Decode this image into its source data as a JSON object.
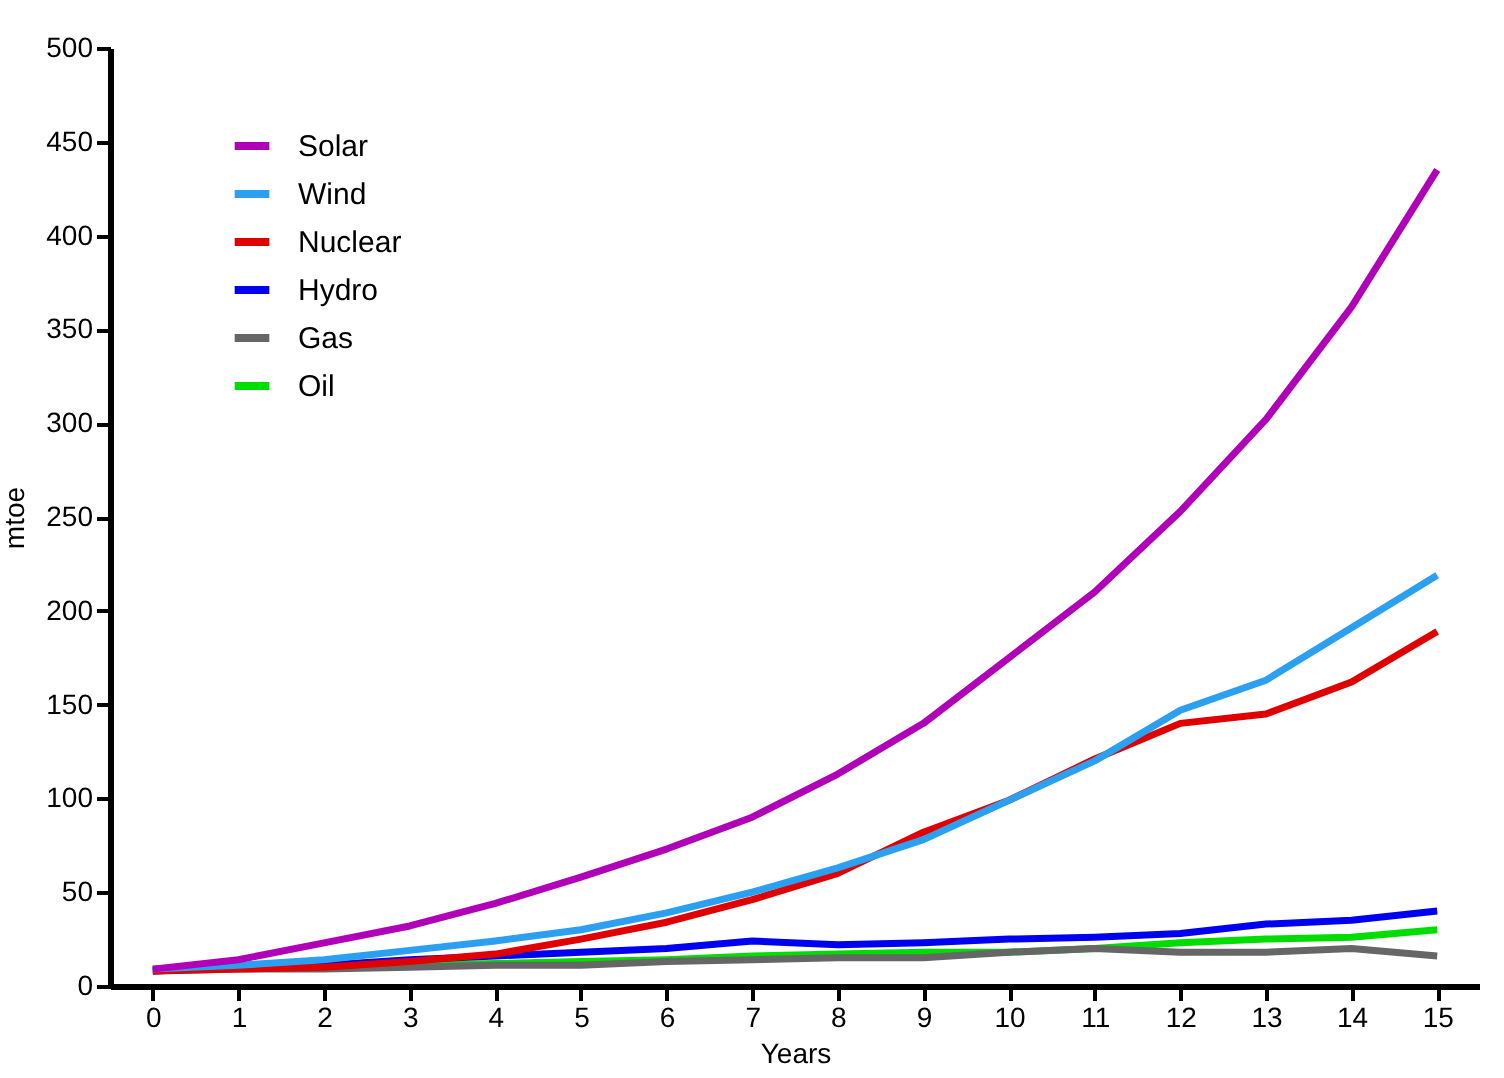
{
  "chart_data": {
    "type": "line",
    "xlabel": "Years",
    "ylabel": "mtoe",
    "x": [
      0,
      1,
      2,
      3,
      4,
      5,
      6,
      7,
      8,
      9,
      10,
      11,
      12,
      13,
      14,
      15
    ],
    "xlim": [
      -0.5,
      15.5
    ],
    "xticks": [
      0,
      1,
      2,
      3,
      4,
      5,
      6,
      7,
      8,
      9,
      10,
      11,
      12,
      13,
      14,
      15
    ],
    "ylim": [
      0,
      500
    ],
    "yticks": [
      0,
      50,
      100,
      150,
      200,
      250,
      300,
      350,
      400,
      450,
      500
    ],
    "grid": false,
    "legend": "top left",
    "marker": "none",
    "line_style": "solid",
    "series": [
      {
        "name": "Solar",
        "color": "#b000b8",
        "values": [
          9,
          14,
          23,
          32,
          44,
          58,
          73,
          90,
          113,
          140,
          175,
          210,
          253,
          302,
          362,
          435
        ]
      },
      {
        "name": "Wind",
        "color": "#2b9ff0",
        "values": [
          9,
          11,
          14,
          19,
          24,
          30,
          39,
          50,
          63,
          78,
          99,
          120,
          147,
          163,
          191,
          219
        ]
      },
      {
        "name": "Nuclear",
        "color": "#e00000",
        "values": [
          8,
          9,
          10,
          13,
          17,
          25,
          34,
          46,
          60,
          82,
          99,
          121,
          140,
          145,
          162,
          189
        ]
      },
      {
        "name": "Hydro",
        "color": "#0000f0",
        "values": [
          8,
          10,
          11,
          14,
          16,
          18,
          20,
          24,
          22,
          23,
          25,
          26,
          28,
          33,
          35,
          40
        ]
      },
      {
        "name": "Gas",
        "color": "#666666",
        "values": [
          8,
          9,
          9,
          10,
          11,
          11,
          13,
          14,
          15,
          15,
          18,
          20,
          18,
          18,
          20,
          16
        ]
      },
      {
        "name": "Oil",
        "color": "#00dd00",
        "values": [
          null,
          null,
          10,
          11,
          12,
          13,
          14,
          16,
          17,
          18,
          18,
          20,
          23,
          25,
          26,
          30
        ]
      }
    ]
  }
}
